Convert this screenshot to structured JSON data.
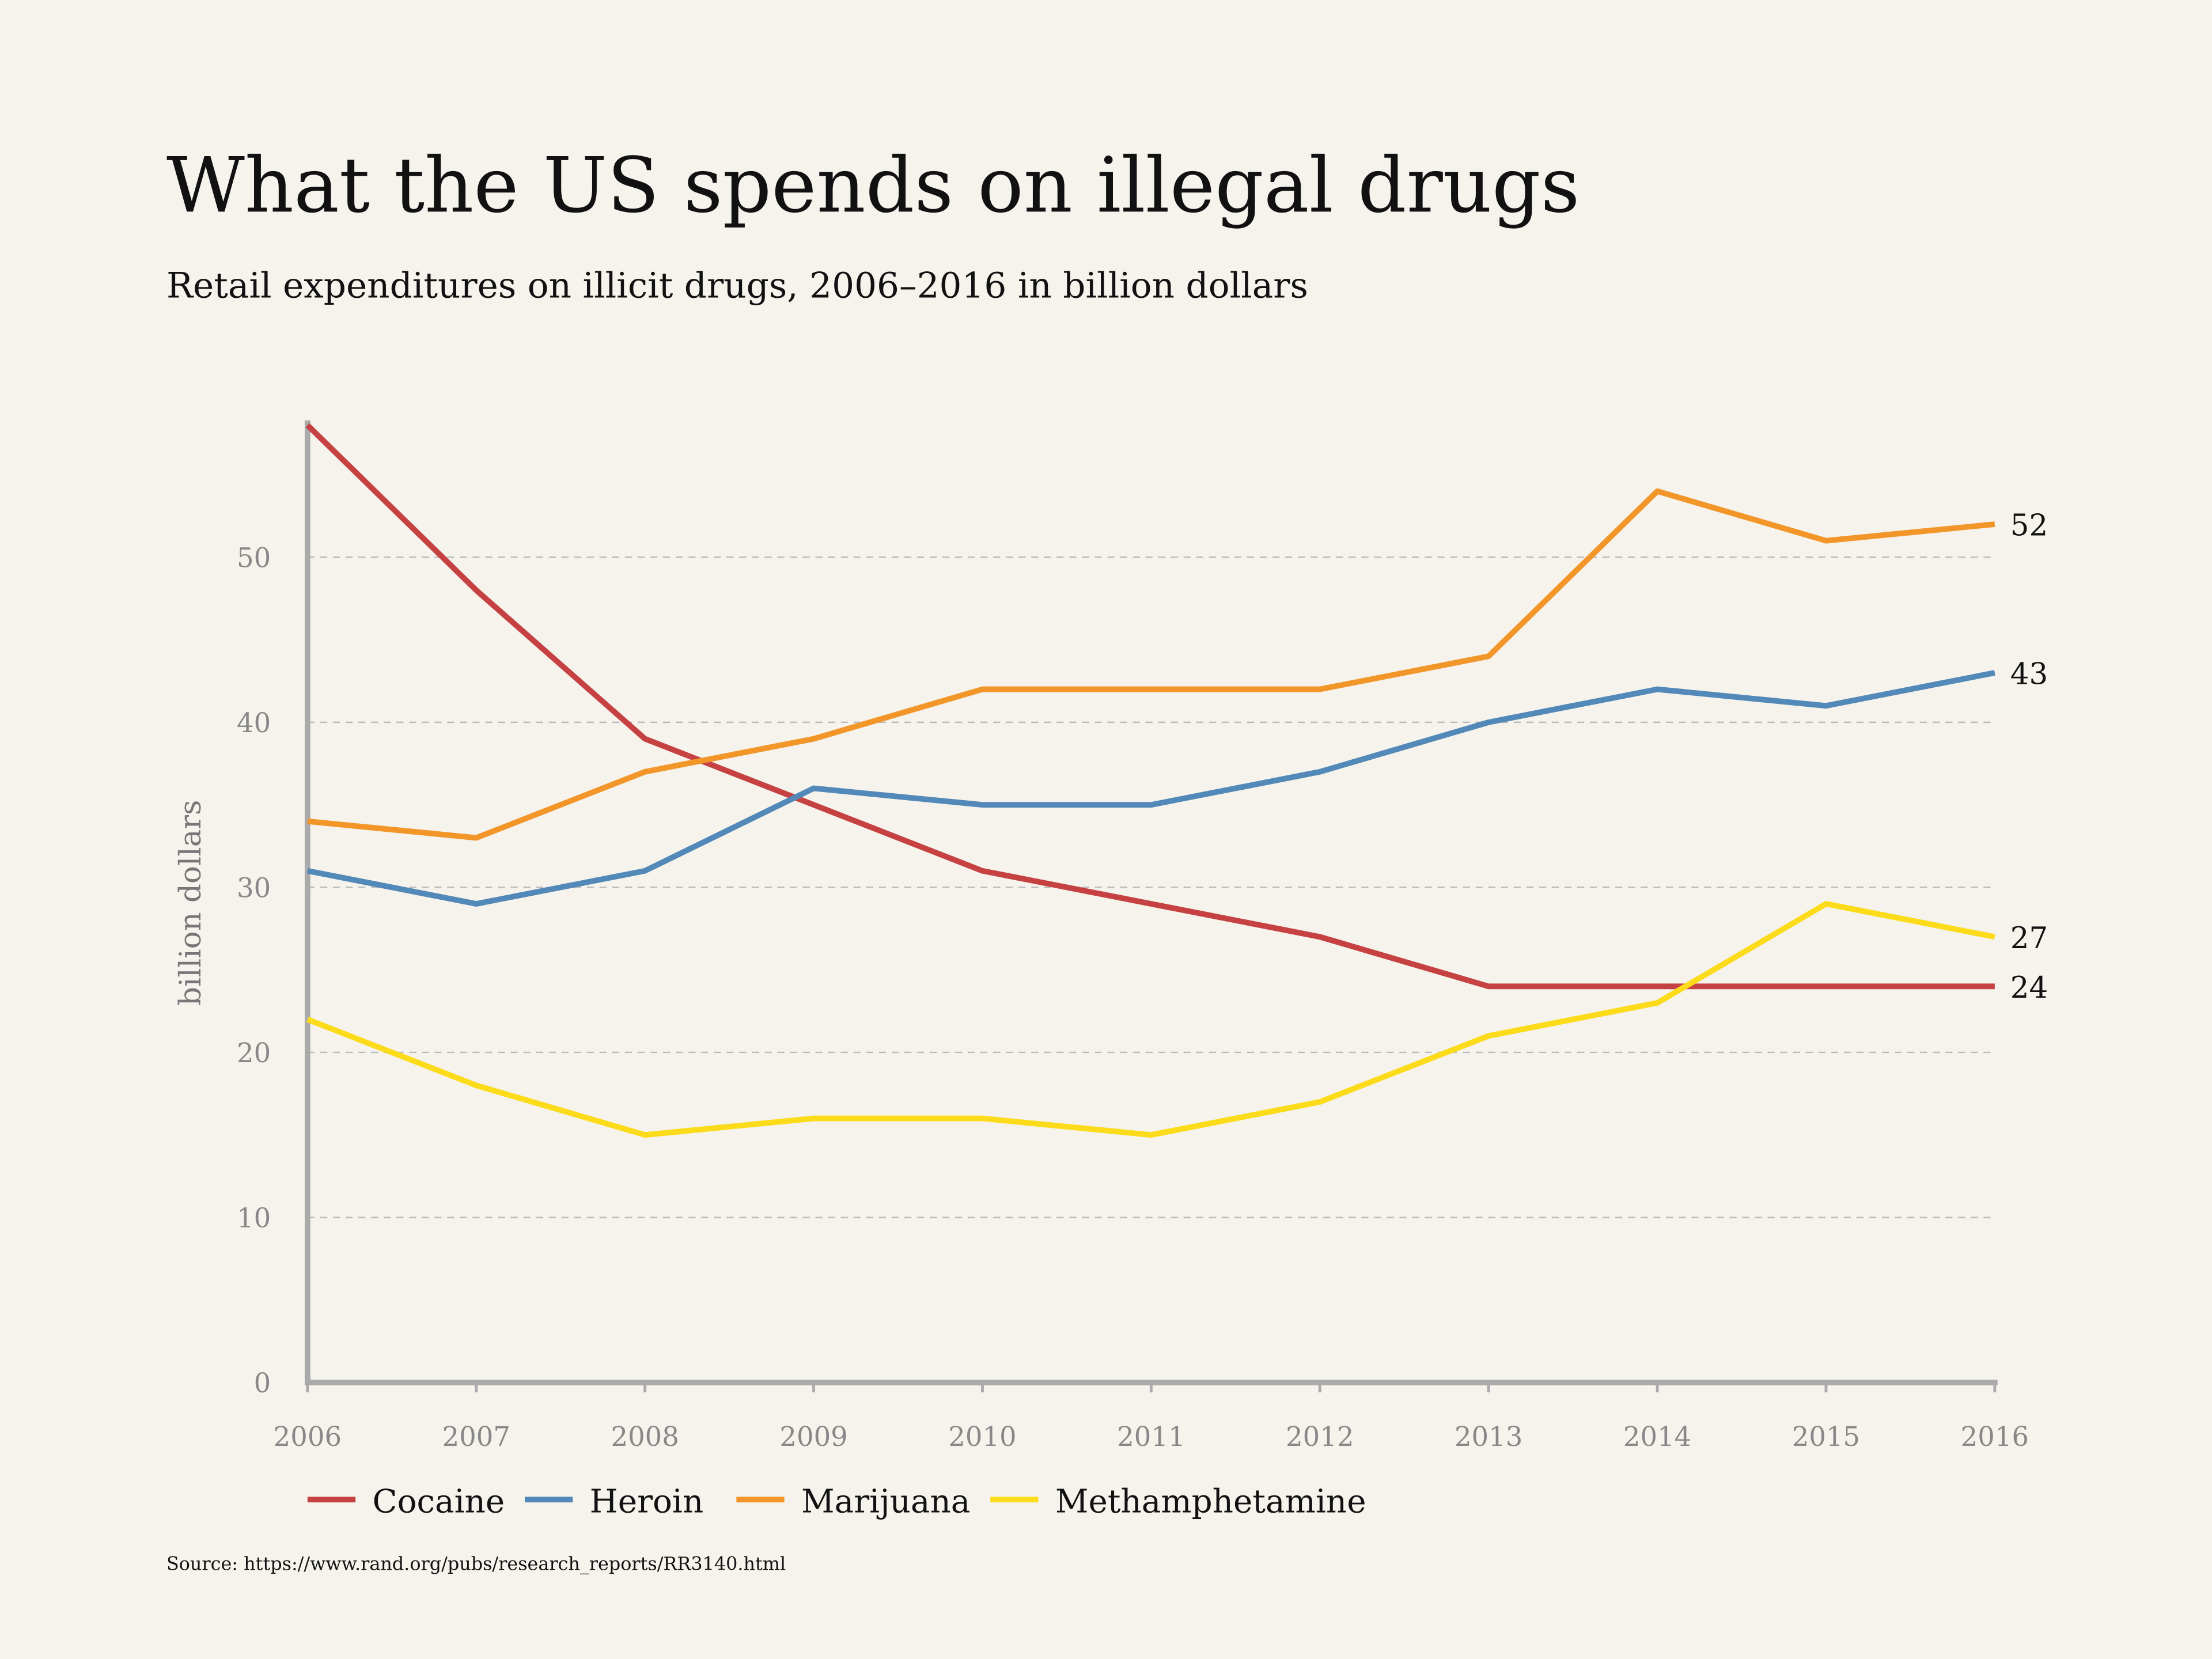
{
  "chart_data": {
    "type": "line",
    "title": "What the US spends on illegal drugs",
    "subtitle": "Retail expenditures on illicit drugs, 2006–2016 in billion dollars",
    "ylabel": "billion dollars",
    "xlabel": "",
    "x": [
      2006,
      2007,
      2008,
      2009,
      2010,
      2011,
      2012,
      2013,
      2014,
      2015,
      2016
    ],
    "ylim": [
      0,
      58
    ],
    "yticks": [
      0,
      10,
      20,
      30,
      40,
      50
    ],
    "grid": true,
    "legend_placement": "bottom-left",
    "series": [
      {
        "name": "Cocaine",
        "color": "#c64141",
        "values": [
          58,
          48,
          39,
          35,
          31,
          29,
          27,
          24,
          24,
          24,
          24
        ],
        "end_label": "24"
      },
      {
        "name": "Heroin",
        "color": "#5289b8",
        "values": [
          31,
          29,
          31,
          36,
          35,
          35,
          37,
          40,
          42,
          41,
          43
        ],
        "end_label": "43"
      },
      {
        "name": "Marijuana",
        "color": "#f39629",
        "values": [
          34,
          33,
          37,
          39,
          42,
          42,
          42,
          44,
          54,
          51,
          52
        ],
        "end_label": "52"
      },
      {
        "name": "Methamphetamine",
        "color": "#fcdb1a",
        "values": [
          22,
          18,
          15,
          16,
          16,
          15,
          17,
          21,
          23,
          29,
          27
        ],
        "end_label": "27"
      }
    ],
    "source": "Source: https://www.rand.org/pubs/research_reports/RR3140.html"
  }
}
